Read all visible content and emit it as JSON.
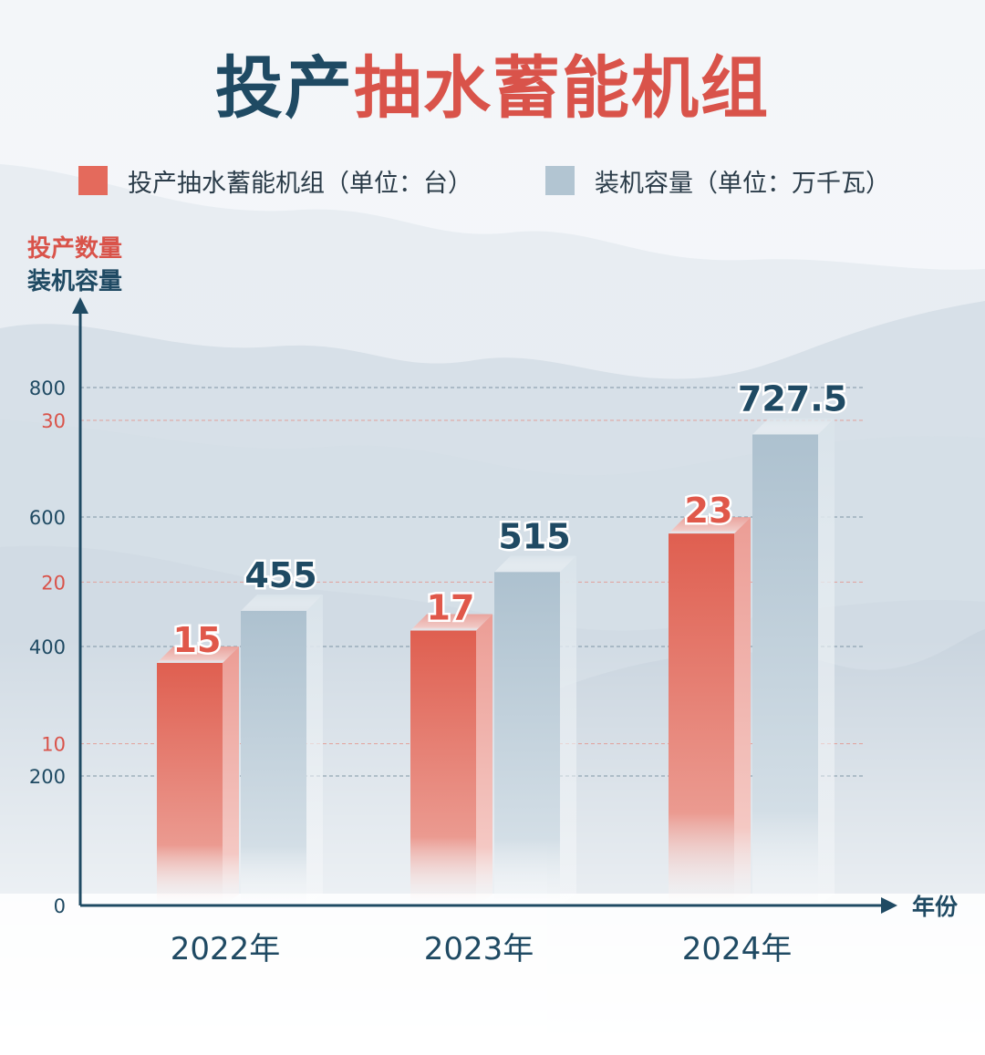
{
  "title": {
    "part1": "投产",
    "part2": "抽水蓄能机组"
  },
  "legend": [
    {
      "label": "投产抽水蓄能机组（单位：台）",
      "color": "#e46a5c"
    },
    {
      "label": "装机容量（单位：万千瓦）",
      "color": "#b2c5d2"
    }
  ],
  "y_axis_labels": {
    "count": "投产数量",
    "capacity": "装机容量"
  },
  "x_axis_label": "年份",
  "colors": {
    "title_dark": "#1f4a63",
    "title_red": "#d9534a",
    "axis": "#1f4a63",
    "red_tick": "#d9534a",
    "blue_tick": "#1f4a63"
  },
  "chart_data": {
    "type": "bar",
    "categories": [
      "2022年",
      "2023年",
      "2024年"
    ],
    "series": [
      {
        "name": "投产抽水蓄能机组（单位：台）",
        "axis": "left-red",
        "values": [
          15,
          17,
          23
        ],
        "labels": [
          "15",
          "17",
          "23"
        ]
      },
      {
        "name": "装机容量（单位：万千瓦）",
        "axis": "left-blue",
        "values": [
          455,
          515,
          727.5
        ],
        "labels": [
          "455",
          "515",
          "727.5"
        ]
      }
    ],
    "y_capacity": {
      "ylim": [
        0,
        800
      ],
      "ticks": [
        0,
        200,
        400,
        600,
        800
      ],
      "tick_labels": [
        "0",
        "200",
        "400",
        "600",
        "800"
      ]
    },
    "y_count": {
      "ylim": [
        0,
        30
      ],
      "ticks": [
        10,
        20,
        30
      ],
      "tick_labels": [
        "10",
        "20",
        "30"
      ]
    },
    "grid": true
  }
}
